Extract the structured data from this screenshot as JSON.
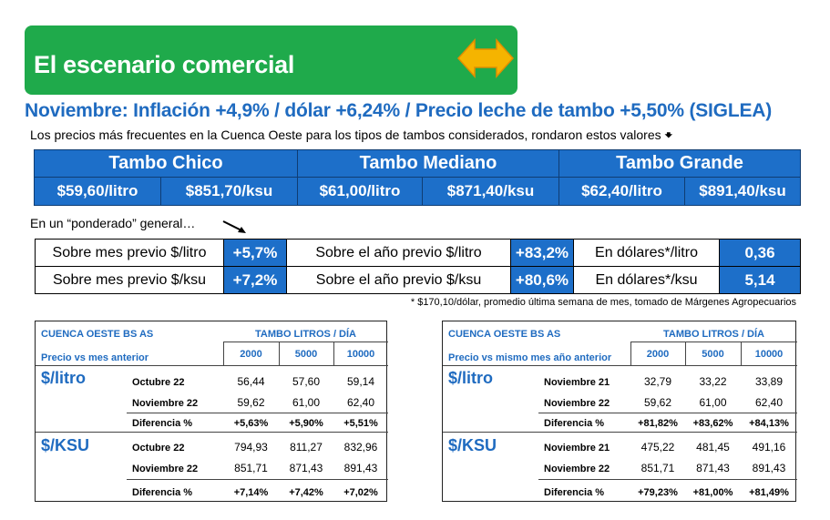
{
  "banner": {
    "title": "El escenario comercial",
    "icon": "double-arrow-icon",
    "icon_color": "#f5b400",
    "bg_color": "#1faa4b"
  },
  "headline": "Noviembre: Inflación +4,9% / dólar +6,24% / Precio leche de tambo +5,50% (SIGLEA)",
  "intro": "Los precios más frecuentes en la Cuenca Oeste para los tipos de tambos considerados, rondaron estos valores",
  "tambos": [
    {
      "name": "Tambo Chico",
      "litro": "$59,60/litro",
      "ksu": "$851,70/ksu"
    },
    {
      "name": "Tambo Mediano",
      "litro": "$61,00/litro",
      "ksu": "$871,40/ksu"
    },
    {
      "name": "Tambo Grande",
      "litro": "$62,40/litro",
      "ksu": "$891,40/ksu"
    }
  ],
  "ponderado": "En un “ponderado” general…",
  "pct_rows": [
    {
      "l1": "Sobre mes previo $/litro",
      "v1": "+5,7%",
      "l2": "Sobre el año previo $/litro",
      "v2": "+83,2%",
      "l3": "En dólares*/litro",
      "v3": "0,36"
    },
    {
      "l1": "Sobre mes previo $/ksu",
      "v1": "+7,2%",
      "l2": "Sobre el año previo $/ksu",
      "v2": "+80,6%",
      "l3": "En dólares*/ksu",
      "v3": "5,14"
    }
  ],
  "note": "* $170,10/dólar, promedio última semana de mes, tomado de Márgenes Agropecuarios",
  "left_table": {
    "title": "CUENCA OESTE BS AS",
    "subtitle": "Precio vs mes anterior",
    "tambo_header": "TAMBO LITROS / DÍA",
    "cols": [
      "2000",
      "5000",
      "10000"
    ],
    "litro": {
      "label": "$/litro",
      "rows": [
        {
          "label": "Octubre 22",
          "values": [
            "56,44",
            "57,60",
            "59,14"
          ]
        },
        {
          "label": "Noviembre 22",
          "values": [
            "59,62",
            "61,00",
            "62,40"
          ]
        },
        {
          "label": "Diferencia %",
          "values": [
            "+5,63%",
            "+5,90%",
            "+5,51%"
          ]
        }
      ]
    },
    "ksu": {
      "label": "$/KSU",
      "rows": [
        {
          "label": "Octubre 22",
          "values": [
            "794,93",
            "811,27",
            "832,96"
          ]
        },
        {
          "label": "Noviembre 22",
          "values": [
            "851,71",
            "871,43",
            "891,43"
          ]
        },
        {
          "label": "Diferencia %",
          "values": [
            "+7,14%",
            "+7,42%",
            "+7,02%"
          ]
        }
      ]
    }
  },
  "right_table": {
    "title": "CUENCA OESTE BS AS",
    "subtitle": "Precio vs mismo mes año anterior",
    "tambo_header": "TAMBO LITROS / DÍA",
    "cols": [
      "2000",
      "5000",
      "10000"
    ],
    "litro": {
      "label": "$/litro",
      "rows": [
        {
          "label": "Noviembre 21",
          "values": [
            "32,79",
            "33,22",
            "33,89"
          ]
        },
        {
          "label": "Noviembre 22",
          "values": [
            "59,62",
            "61,00",
            "62,40"
          ]
        },
        {
          "label": "Diferencia %",
          "values": [
            "+81,82%",
            "+83,62%",
            "+84,13%"
          ]
        }
      ]
    },
    "ksu": {
      "label": "$/KSU",
      "rows": [
        {
          "label": "Noviembre 21",
          "values": [
            "475,22",
            "481,45",
            "491,16"
          ]
        },
        {
          "label": "Noviembre 22",
          "values": [
            "851,71",
            "871,43",
            "891,43"
          ]
        },
        {
          "label": "Diferencia %",
          "values": [
            "+79,23%",
            "+81,00%",
            "+81,49%"
          ]
        }
      ]
    }
  }
}
